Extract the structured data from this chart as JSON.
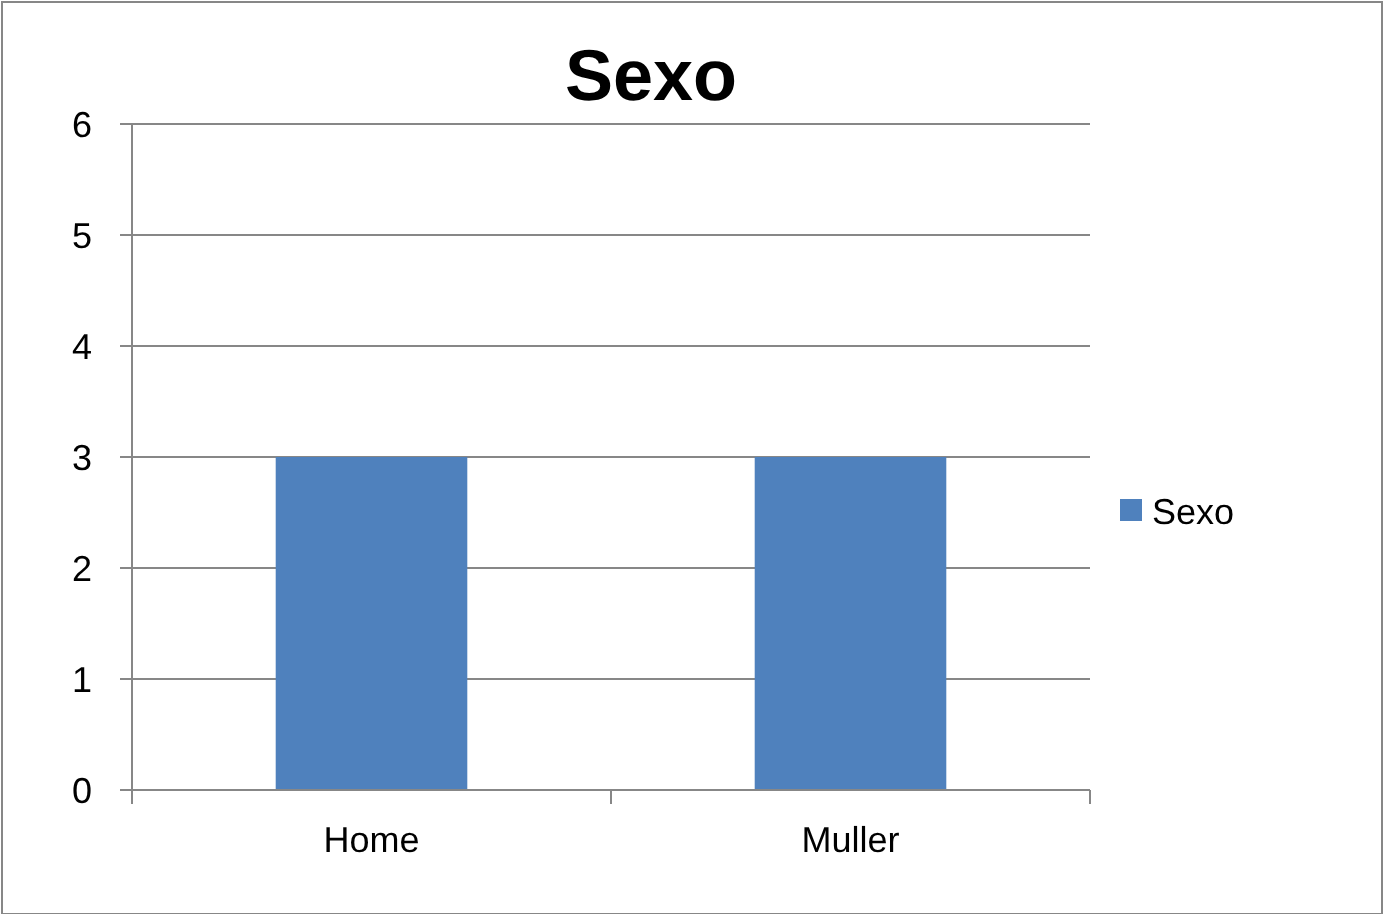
{
  "chart_data": {
    "type": "bar",
    "title": "Sexo",
    "categories": [
      "Home",
      "Muller"
    ],
    "series": [
      {
        "name": "Sexo",
        "color": "#4f81bd",
        "values": [
          3,
          3
        ]
      }
    ],
    "ylim": [
      0,
      6
    ],
    "yticks": [
      0,
      1,
      2,
      3,
      4,
      5,
      6
    ],
    "grid": "y",
    "legend": "right"
  }
}
